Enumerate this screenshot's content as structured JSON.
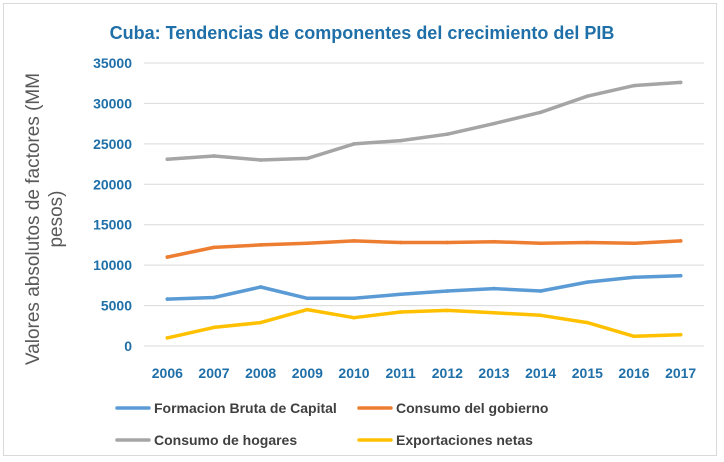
{
  "chart_data": {
    "type": "line",
    "title": "Cuba: Tendencias de componentes del crecimiento del PIB",
    "ylabel_lines": [
      "Valores absolutos de factores (MM",
      "pesos)"
    ],
    "xlabel": "",
    "categories": [
      "2006",
      "2007",
      "2008",
      "2009",
      "2010",
      "2011",
      "2012",
      "2013",
      "2014",
      "2015",
      "2016",
      "2017"
    ],
    "ylim": [
      0,
      35000
    ],
    "yticks": [
      0,
      5000,
      10000,
      15000,
      20000,
      25000,
      30000,
      35000
    ],
    "grid": true,
    "legend_position": "bottom",
    "series": [
      {
        "name": "Formacion Bruta de Capital",
        "color": "#5b9bd5",
        "values": [
          5800,
          6000,
          7300,
          5900,
          5900,
          6400,
          6800,
          7100,
          6800,
          7900,
          8500,
          8700
        ]
      },
      {
        "name": "Consumo del gobierno",
        "color": "#ed7d31",
        "values": [
          11000,
          12200,
          12500,
          12700,
          13000,
          12800,
          12800,
          12900,
          12700,
          12800,
          12700,
          13000
        ]
      },
      {
        "name": "Consumo de hogares",
        "color": "#a5a5a5",
        "values": [
          23100,
          23500,
          23000,
          23200,
          25000,
          25400,
          26200,
          27500,
          28900,
          30900,
          32200,
          32600
        ]
      },
      {
        "name": "Exportaciones netas",
        "color": "#ffc000",
        "values": [
          1000,
          2300,
          2900,
          4500,
          3500,
          4200,
          4400,
          4100,
          3800,
          2900,
          1200,
          1400
        ]
      }
    ],
    "colors": {
      "title": "#1f6fa8",
      "tick_labels": "#1f6fa8",
      "ylabel": "#595959",
      "legend_text": "#404040",
      "grid": "#d9d9d9"
    }
  }
}
